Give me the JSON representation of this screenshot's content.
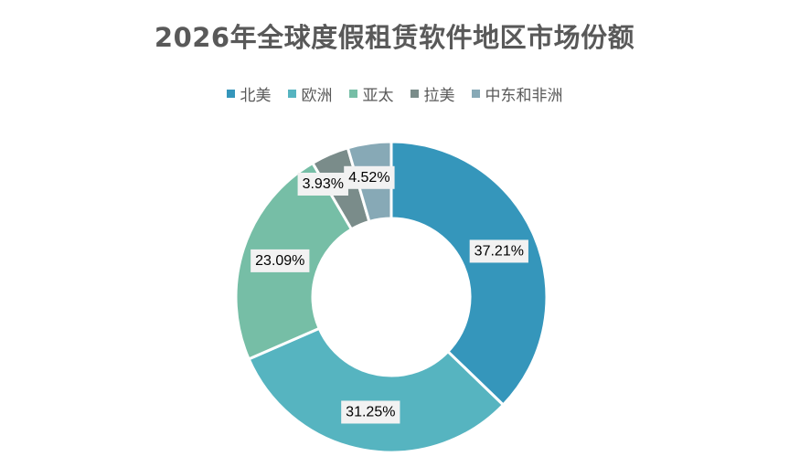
{
  "chart_data": {
    "type": "pie",
    "variant": "donut",
    "title": "2026年全球度假租赁软件地区市场份额",
    "legend_position": "top",
    "categories": [
      "北美",
      "欧洲",
      "亚太",
      "拉美",
      "中东和非洲"
    ],
    "values": [
      37.21,
      31.25,
      23.09,
      3.93,
      4.52
    ],
    "labels": [
      "37.21%",
      "31.25%",
      "23.09%",
      "3.93%",
      "4.52%"
    ],
    "colors": [
      "#3596bb",
      "#56b4c0",
      "#76bea6",
      "#7a8c8a",
      "#87a9b6"
    ]
  }
}
